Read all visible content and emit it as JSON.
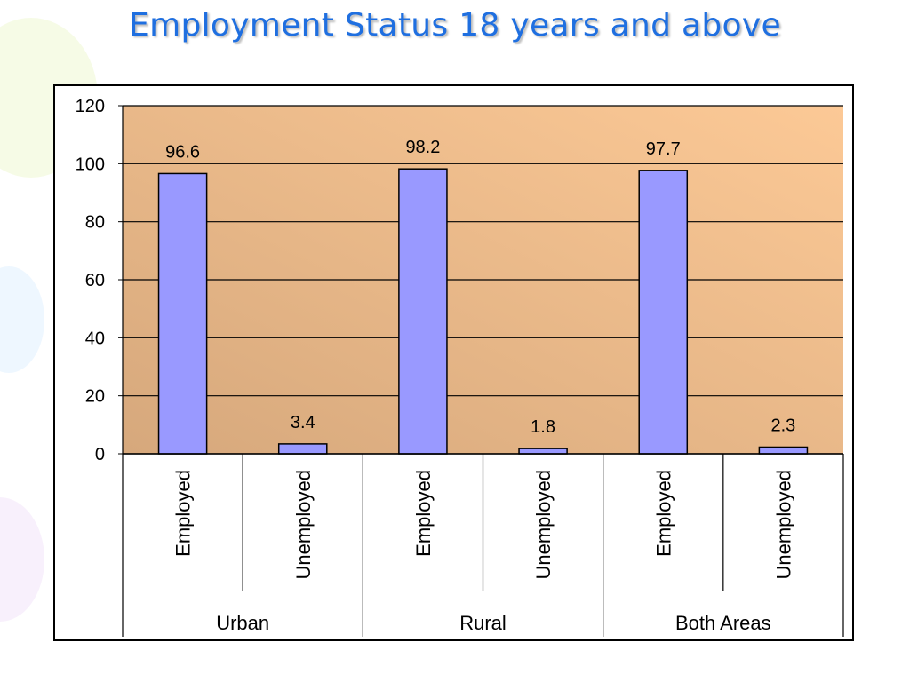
{
  "title": "Employment Status 18 years and above",
  "colors": {
    "bar_fill": "#9999ff",
    "plot_bg_left": "#d6a87c",
    "plot_bg_right": "#fcc996",
    "title": "#1f6fe0"
  },
  "chart_data": {
    "type": "bar",
    "title": "",
    "xlabel": "",
    "ylabel": "",
    "ylim": [
      0,
      120
    ],
    "yticks": [
      0,
      20,
      40,
      60,
      80,
      100,
      120
    ],
    "grid": true,
    "legend": "none",
    "groups": [
      {
        "label": "Urban",
        "categories": [
          "Employed",
          "Unemployed"
        ],
        "values": [
          96.6,
          3.4
        ],
        "value_labels": [
          "96.6",
          "3.4"
        ]
      },
      {
        "label": "Rural",
        "categories": [
          "Employed",
          "Unemployed"
        ],
        "values": [
          98.2,
          1.8
        ],
        "value_labels": [
          "98.2",
          "1.8"
        ]
      },
      {
        "label": "Both Areas",
        "categories": [
          "Employed",
          "Unemployed"
        ],
        "values": [
          97.7,
          2.3
        ],
        "value_labels": [
          "97.7",
          "2.3"
        ]
      }
    ]
  }
}
